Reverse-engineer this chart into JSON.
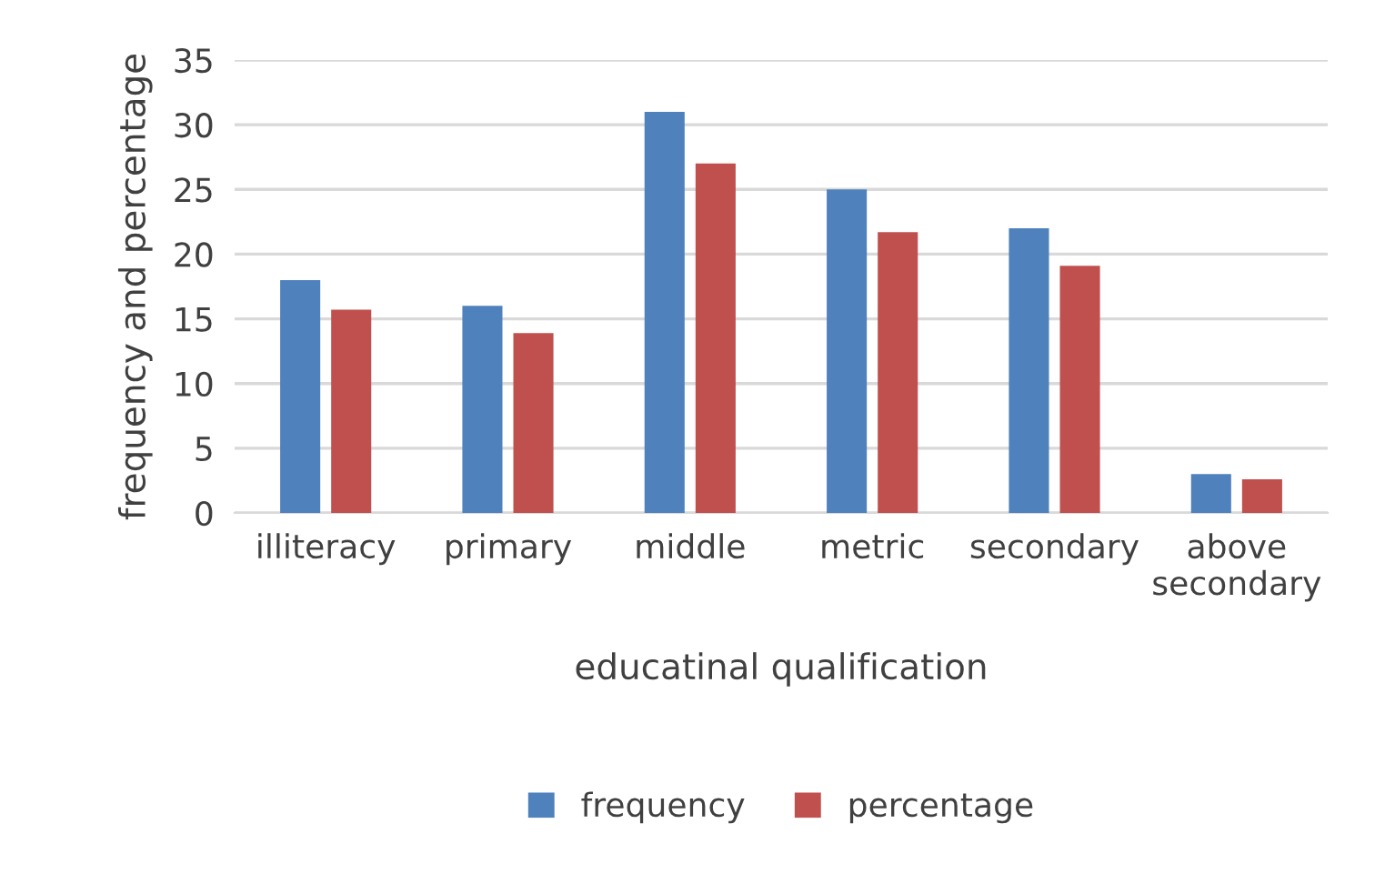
{
  "chart_data": {
    "type": "bar",
    "xlabel": "educatinal qualification",
    "ylabel": "frequency and percentage",
    "categories": [
      "illiteracy",
      "primary",
      "middle",
      "metric",
      "secondary",
      "above secondary"
    ],
    "series": [
      {
        "name": "frequency",
        "color": "#4f81bd",
        "values": [
          18,
          16,
          31,
          25,
          22,
          3
        ]
      },
      {
        "name": "percentage",
        "color": "#c0504d",
        "values": [
          15.7,
          13.9,
          27.0,
          21.7,
          19.1,
          2.6
        ]
      }
    ],
    "ylim": [
      0,
      35
    ],
    "yticks": [
      0,
      5,
      10,
      15,
      20,
      25,
      30,
      35
    ],
    "grid": "y",
    "legend": "bottom"
  }
}
